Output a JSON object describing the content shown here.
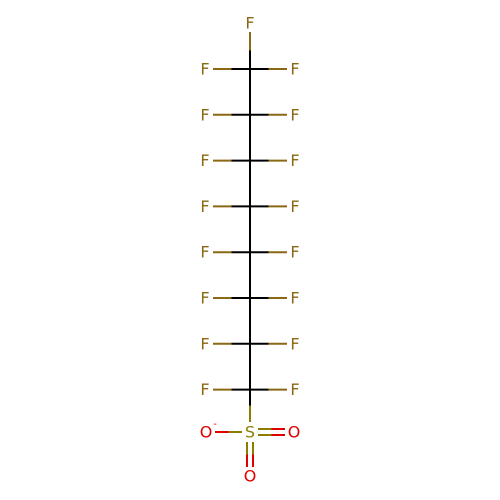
{
  "molecule": {
    "colors": {
      "bond": "#000000",
      "fluorine": "#8b6914",
      "sulfur": "#8b7d00",
      "oxygen": "#e00000"
    },
    "carbon_chain_length": 8,
    "labels": {
      "fluorine": "F",
      "sulfur": "S",
      "oxygen": "O",
      "negative_charge": "-"
    }
  }
}
